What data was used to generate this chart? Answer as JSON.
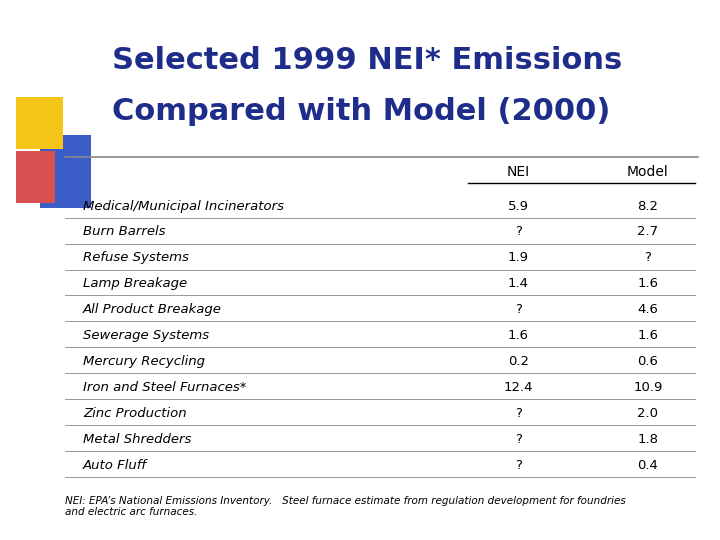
{
  "title_line1": "Selected 1999 NEI* Emissions",
  "title_line2": "Compared with Model (2000)",
  "title_color": "#1F2D8A",
  "bg_color": "#FFFFFF",
  "col_headers": [
    "NEI",
    "Model"
  ],
  "rows": [
    {
      "label": "Medical/Municipal Incinerators",
      "nei": "5.9",
      "model": "8.2"
    },
    {
      "label": "Burn Barrels",
      "nei": "?",
      "model": "2.7"
    },
    {
      "label": "Refuse Systems",
      "nei": "1.9",
      "model": "?"
    },
    {
      "label": "Lamp Breakage",
      "nei": "1.4",
      "model": "1.6"
    },
    {
      "label": "All Product Breakage",
      "nei": "?",
      "model": "4.6"
    },
    {
      "label": "Sewerage Systems",
      "nei": "1.6",
      "model": "1.6"
    },
    {
      "label": "Mercury Recycling",
      "nei": "0.2",
      "model": "0.6"
    },
    {
      "label": "Iron and Steel Furnaces*",
      "nei": "12.4",
      "model": "10.9"
    },
    {
      "label": "Zinc Production",
      "nei": "?",
      "model": "2.0"
    },
    {
      "label": "Metal Shredders",
      "nei": "?",
      "model": "1.8"
    },
    {
      "label": "Auto Fluff",
      "nei": "?",
      "model": "0.4"
    }
  ],
  "footnote": "NEI: EPA’s National Emissions Inventory.   Steel furnace estimate from regulation development for foundries\nand electric arc furnaces.",
  "text_color": "#000000",
  "table_font_size": 9.5,
  "header_font_size": 10,
  "footnote_font_size": 7.5,
  "yellow_color": "#F5C518",
  "red_color": "#D85050",
  "blue_color": "#3A5DC8",
  "line_color": "#888888"
}
